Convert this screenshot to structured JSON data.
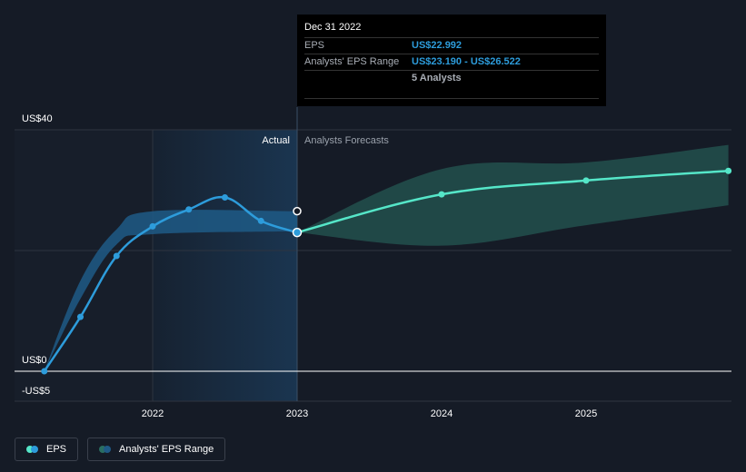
{
  "chart_data": {
    "type": "line",
    "y_tick_labels": [
      {
        "label": "US$40",
        "value": 40
      },
      {
        "label": "US$0",
        "value": 0
      },
      {
        "label": "-US$5",
        "value": -5
      }
    ],
    "x_ticks": [
      2022,
      2023,
      2024,
      2025
    ],
    "x_range": [
      2021.25,
      2025.985
    ],
    "y_range": [
      -5,
      40
    ],
    "divider_label_actual": "Actual",
    "divider_label_forecast": "Analysts Forecasts",
    "series": [
      {
        "name": "EPS",
        "color": "#2d9cdb",
        "points": [
          {
            "x": 2021.25,
            "y": 0.0
          },
          {
            "x": 2021.5,
            "y": 9.0
          },
          {
            "x": 2021.75,
            "y": 19.1
          },
          {
            "x": 2022.0,
            "y": 24.0
          },
          {
            "x": 2022.25,
            "y": 26.8
          },
          {
            "x": 2022.5,
            "y": 28.8
          },
          {
            "x": 2022.75,
            "y": 24.9
          },
          {
            "x": 2023.0,
            "y": 23.0
          }
        ]
      },
      {
        "name": "EPS forecast",
        "color": "#55e6c8",
        "points": [
          {
            "x": 2023.0,
            "y": 23.0
          },
          {
            "x": 2024.0,
            "y": 29.3
          },
          {
            "x": 2025.0,
            "y": 31.6
          },
          {
            "x": 2025.985,
            "y": 33.2
          }
        ]
      }
    ],
    "range_band": {
      "name": "Analysts' EPS Range",
      "color": "#2d9cdb",
      "forecast_color": "#2a6e62",
      "low": [
        {
          "x": 2021.25,
          "y": 0
        },
        {
          "x": 2021.5,
          "y": 12
        },
        {
          "x": 2021.75,
          "y": 21
        },
        {
          "x": 2022.0,
          "y": 22.7
        },
        {
          "x": 2023.0,
          "y": 23.2
        }
      ],
      "high": [
        {
          "x": 2021.25,
          "y": 0
        },
        {
          "x": 2021.5,
          "y": 15
        },
        {
          "x": 2021.75,
          "y": 23.5
        },
        {
          "x": 2022.0,
          "y": 26.5
        },
        {
          "x": 2023.0,
          "y": 26.5
        }
      ],
      "forecast_low": [
        {
          "x": 2023.0,
          "y": 23.0
        },
        {
          "x": 2024.0,
          "y": 20.8
        },
        {
          "x": 2025.0,
          "y": 24.2
        },
        {
          "x": 2025.985,
          "y": 27.5
        }
      ],
      "forecast_high": [
        {
          "x": 2023.0,
          "y": 23.0
        },
        {
          "x": 2024.0,
          "y": 33.5
        },
        {
          "x": 2025.0,
          "y": 34.6
        },
        {
          "x": 2025.985,
          "y": 37.5
        }
      ]
    },
    "highlight": {
      "x": 2023.0,
      "eps": 22.992,
      "range_high": 26.522
    }
  },
  "tooltip": {
    "date": "Dec 31 2022",
    "eps_label": "EPS",
    "eps_value": "US$22.992",
    "range_label": "Analysts' EPS Range",
    "range_value": "US$23.190 - US$26.522",
    "analysts_text": "5 Analysts"
  },
  "legend": {
    "eps_label": "EPS",
    "range_label": "Analysts' EPS Range"
  },
  "colors": {
    "background": "#151b26",
    "actual_shade": "#1a3550",
    "eps_line": "#2d9cdb",
    "forecast_line": "#55e6c8",
    "forecast_band": "#2a6e62",
    "grid": "#2e3440",
    "zero_line": "#ffffff",
    "axis_text": "#ffffff"
  }
}
